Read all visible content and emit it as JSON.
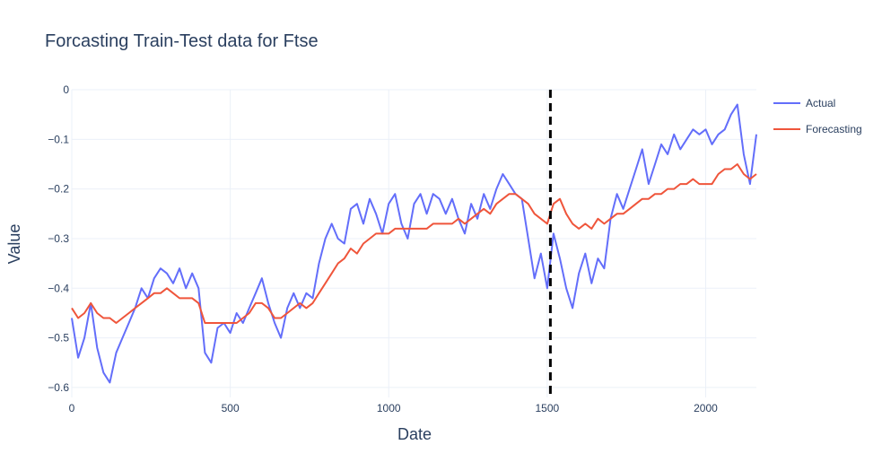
{
  "chart_data": {
    "type": "line",
    "title": "Forcasting Train-Test data for Ftse",
    "xlabel": "Date",
    "ylabel": "Value",
    "xlim": [
      0,
      2160
    ],
    "ylim": [
      -0.62,
      0.0
    ],
    "x_ticks": [
      0,
      500,
      1000,
      1500,
      2000
    ],
    "y_ticks": [
      0,
      -0.1,
      -0.2,
      -0.3,
      -0.4,
      -0.5,
      -0.6
    ],
    "y_tick_labels": [
      "0",
      "−0.1",
      "−0.2",
      "−0.3",
      "−0.4",
      "−0.5",
      "−0.6"
    ],
    "grid": true,
    "legend_position": "top-right",
    "split_line": {
      "x": 1510,
      "style": "dashed",
      "color": "#000000"
    },
    "series": [
      {
        "name": "Actual",
        "color": "#636efa",
        "x": [
          0,
          20,
          40,
          60,
          80,
          100,
          120,
          140,
          160,
          180,
          200,
          220,
          240,
          260,
          280,
          300,
          320,
          340,
          360,
          380,
          400,
          420,
          440,
          460,
          480,
          500,
          520,
          540,
          560,
          580,
          600,
          620,
          640,
          660,
          680,
          700,
          720,
          740,
          760,
          780,
          800,
          820,
          840,
          860,
          880,
          900,
          920,
          940,
          960,
          980,
          1000,
          1020,
          1040,
          1060,
          1080,
          1100,
          1120,
          1140,
          1160,
          1180,
          1200,
          1220,
          1240,
          1260,
          1280,
          1300,
          1320,
          1340,
          1360,
          1380,
          1400,
          1420,
          1440,
          1460,
          1480,
          1500,
          1520,
          1540,
          1560,
          1580,
          1600,
          1620,
          1640,
          1660,
          1680,
          1700,
          1720,
          1740,
          1760,
          1780,
          1800,
          1820,
          1840,
          1860,
          1880,
          1900,
          1920,
          1940,
          1960,
          1980,
          2000,
          2020,
          2040,
          2060,
          2080,
          2100,
          2120,
          2140,
          2160
        ],
        "y": [
          -0.46,
          -0.54,
          -0.5,
          -0.43,
          -0.52,
          -0.57,
          -0.59,
          -0.53,
          -0.5,
          -0.47,
          -0.44,
          -0.4,
          -0.42,
          -0.38,
          -0.36,
          -0.37,
          -0.39,
          -0.36,
          -0.4,
          -0.37,
          -0.4,
          -0.53,
          -0.55,
          -0.48,
          -0.47,
          -0.49,
          -0.45,
          -0.47,
          -0.44,
          -0.41,
          -0.38,
          -0.43,
          -0.47,
          -0.5,
          -0.44,
          -0.41,
          -0.44,
          -0.41,
          -0.42,
          -0.35,
          -0.3,
          -0.27,
          -0.3,
          -0.31,
          -0.24,
          -0.23,
          -0.27,
          -0.22,
          -0.25,
          -0.29,
          -0.23,
          -0.21,
          -0.27,
          -0.3,
          -0.23,
          -0.21,
          -0.25,
          -0.21,
          -0.22,
          -0.25,
          -0.22,
          -0.26,
          -0.29,
          -0.23,
          -0.26,
          -0.21,
          -0.24,
          -0.2,
          -0.17,
          -0.19,
          -0.21,
          -0.22,
          -0.3,
          -0.38,
          -0.33,
          -0.4,
          -0.29,
          -0.34,
          -0.4,
          -0.44,
          -0.37,
          -0.33,
          -0.39,
          -0.34,
          -0.36,
          -0.26,
          -0.21,
          -0.24,
          -0.2,
          -0.16,
          -0.12,
          -0.19,
          -0.15,
          -0.11,
          -0.13,
          -0.09,
          -0.12,
          -0.1,
          -0.08,
          -0.09,
          -0.08,
          -0.11,
          -0.09,
          -0.08,
          -0.05,
          -0.03,
          -0.13,
          -0.19,
          -0.09
        ]
      },
      {
        "name": "Forecasting",
        "color": "#ef553b",
        "x": [
          0,
          20,
          40,
          60,
          80,
          100,
          120,
          140,
          160,
          180,
          200,
          220,
          240,
          260,
          280,
          300,
          320,
          340,
          360,
          380,
          400,
          420,
          440,
          460,
          480,
          500,
          520,
          540,
          560,
          580,
          600,
          620,
          640,
          660,
          680,
          700,
          720,
          740,
          760,
          780,
          800,
          820,
          840,
          860,
          880,
          900,
          920,
          940,
          960,
          980,
          1000,
          1020,
          1040,
          1060,
          1080,
          1100,
          1120,
          1140,
          1160,
          1180,
          1200,
          1220,
          1240,
          1260,
          1280,
          1300,
          1320,
          1340,
          1360,
          1380,
          1400,
          1420,
          1440,
          1460,
          1480,
          1500,
          1520,
          1540,
          1560,
          1580,
          1600,
          1620,
          1640,
          1660,
          1680,
          1700,
          1720,
          1740,
          1760,
          1780,
          1800,
          1820,
          1840,
          1860,
          1880,
          1900,
          1920,
          1940,
          1960,
          1980,
          2000,
          2020,
          2040,
          2060,
          2080,
          2100,
          2120,
          2140,
          2160
        ],
        "y": [
          -0.44,
          -0.46,
          -0.45,
          -0.43,
          -0.45,
          -0.46,
          -0.46,
          -0.47,
          -0.46,
          -0.45,
          -0.44,
          -0.43,
          -0.42,
          -0.41,
          -0.41,
          -0.4,
          -0.41,
          -0.42,
          -0.42,
          -0.42,
          -0.43,
          -0.47,
          -0.47,
          -0.47,
          -0.47,
          -0.47,
          -0.47,
          -0.46,
          -0.45,
          -0.43,
          -0.43,
          -0.44,
          -0.46,
          -0.46,
          -0.45,
          -0.44,
          -0.43,
          -0.44,
          -0.43,
          -0.41,
          -0.39,
          -0.37,
          -0.35,
          -0.34,
          -0.32,
          -0.33,
          -0.31,
          -0.3,
          -0.29,
          -0.29,
          -0.29,
          -0.28,
          -0.28,
          -0.28,
          -0.28,
          -0.28,
          -0.28,
          -0.27,
          -0.27,
          -0.27,
          -0.27,
          -0.26,
          -0.27,
          -0.26,
          -0.25,
          -0.24,
          -0.25,
          -0.23,
          -0.22,
          -0.21,
          -0.21,
          -0.22,
          -0.23,
          -0.25,
          -0.26,
          -0.27,
          -0.23,
          -0.22,
          -0.25,
          -0.27,
          -0.28,
          -0.27,
          -0.28,
          -0.26,
          -0.27,
          -0.26,
          -0.25,
          -0.25,
          -0.24,
          -0.23,
          -0.22,
          -0.22,
          -0.21,
          -0.21,
          -0.2,
          -0.2,
          -0.19,
          -0.19,
          -0.18,
          -0.19,
          -0.19,
          -0.19,
          -0.17,
          -0.16,
          -0.16,
          -0.15,
          -0.17,
          -0.18,
          -0.17
        ]
      }
    ]
  }
}
